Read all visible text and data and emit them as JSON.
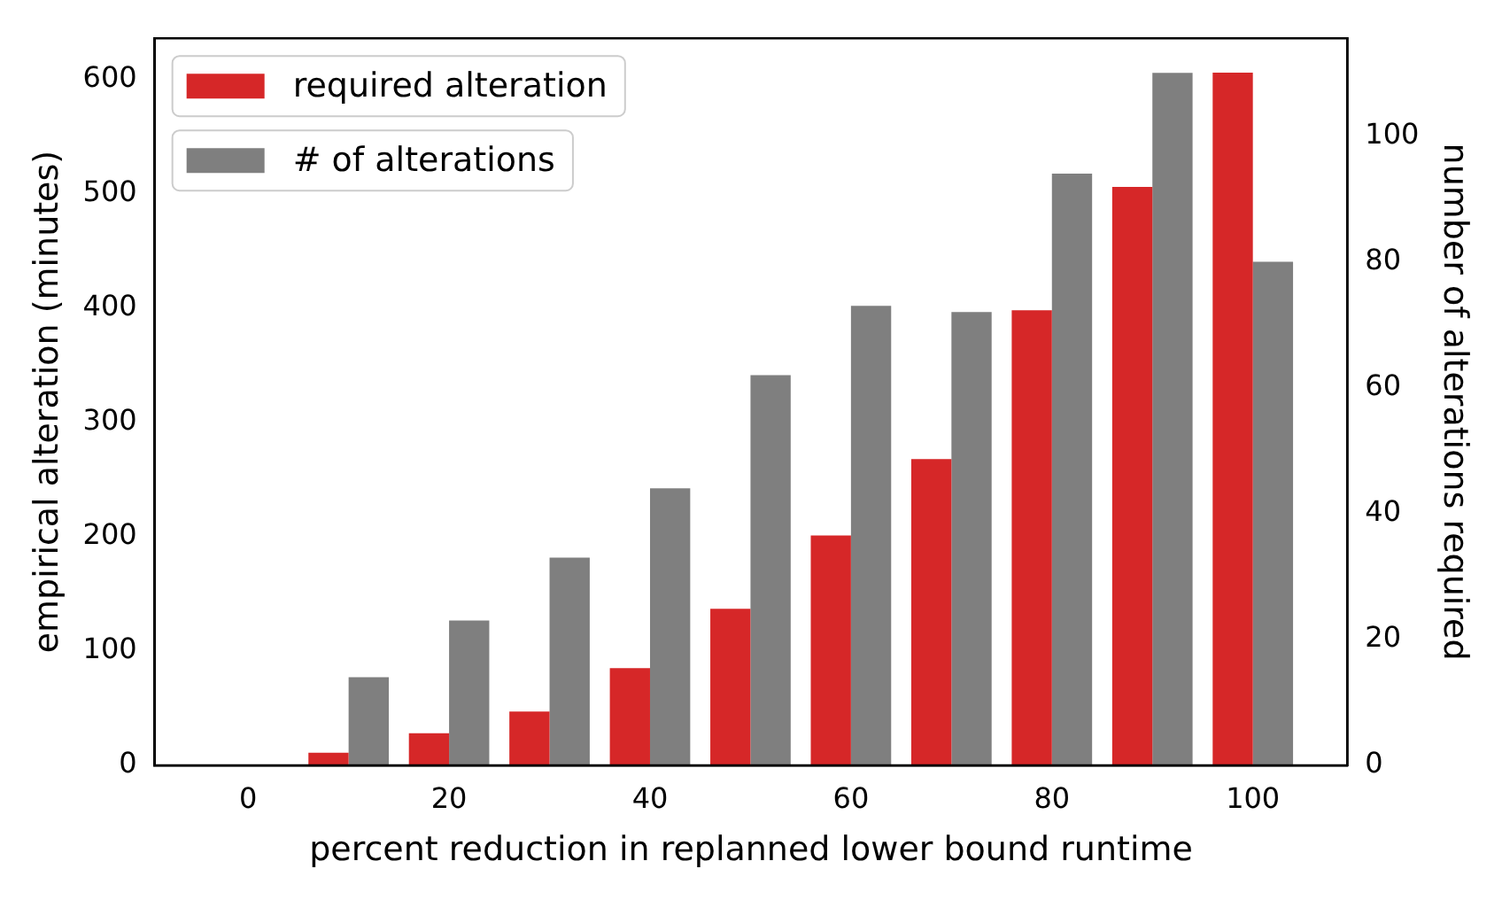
{
  "chart_data": {
    "type": "bar",
    "xlabel": "percent reduction in replanned lower bound runtime",
    "ylabel": "empirical alteration (minutes)",
    "y2label": "number of alterations required",
    "x": [
      0,
      10,
      20,
      30,
      40,
      50,
      60,
      70,
      80,
      90,
      100
    ],
    "series": [
      {
        "name": "required alteration",
        "color": "#d62728",
        "values": [
          0,
          11,
          28,
          47,
          85,
          137,
          201,
          268,
          398,
          506,
          606
        ]
      },
      {
        "name": "# of alterations",
        "color": "#7f7f7f",
        "axis": "y2",
        "values": [
          0,
          14,
          23,
          33,
          44,
          62,
          73,
          72,
          94,
          110,
          80
        ]
      }
    ],
    "xlim": [
      -9.3,
      109.4
    ],
    "xticks": [
      0,
      20,
      40,
      60,
      80,
      100
    ],
    "ylim": [
      0,
      636
    ],
    "yticks": [
      0,
      100,
      200,
      300,
      400,
      500,
      600
    ],
    "y2lim": [
      0,
      115.5
    ],
    "y2ticks": [
      0,
      20,
      40,
      60,
      80,
      100
    ],
    "grid": false,
    "legend": "top left"
  }
}
